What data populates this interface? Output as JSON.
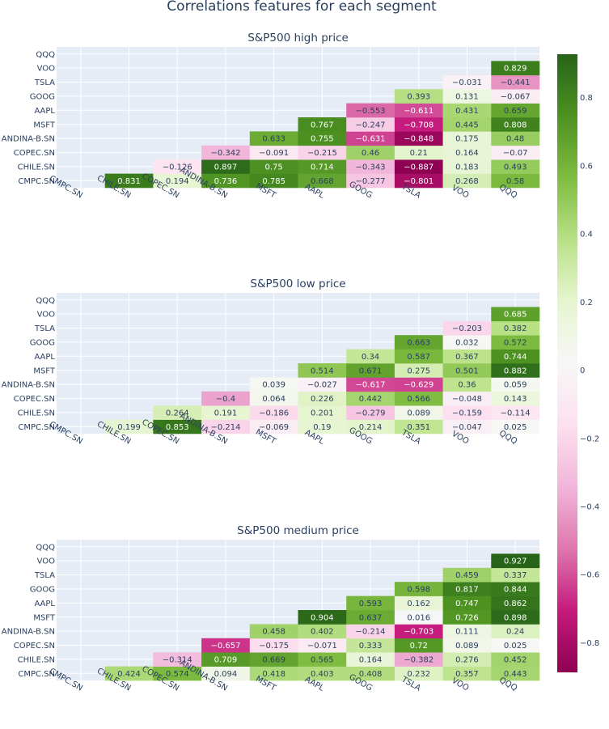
{
  "title": "Correlations features for each segment",
  "colors": {
    "plot_bg": "#e5ecf6",
    "grid": "#ffffff",
    "text": "#2a3f5f",
    "scale": [
      "#8e0152",
      "#c51b7d",
      "#de77ae",
      "#f1b6da",
      "#fde0ef",
      "#f7f7f7",
      "#e6f5d0",
      "#b8e186",
      "#7fbc41",
      "#4d9221",
      "#276419"
    ]
  },
  "colorbar": {
    "zmin": -0.887,
    "zmax": 0.927,
    "ticks": [
      "0.8",
      "0.6",
      "0.4",
      "0.2",
      "0",
      "−0.2",
      "−0.4",
      "−0.6",
      "−0.8"
    ],
    "tick_values": [
      0.8,
      0.6,
      0.4,
      0.2,
      0,
      -0.2,
      -0.4,
      -0.6,
      -0.8
    ]
  },
  "chart_data": [
    {
      "type": "heatmap",
      "title": "S&P500 high price",
      "x": [
        "CMPC.SN",
        "CHILE.SN",
        "COPEC.SN",
        "ANDINA-B.SN",
        "MSFT",
        "AAPL",
        "GOOG",
        "TSLA",
        "VOO",
        "QQQ"
      ],
      "y": [
        "CMPC.SN",
        "CHILE.SN",
        "COPEC.SN",
        "ANDINA-B.SN",
        "MSFT",
        "AAPL",
        "GOOG",
        "TSLA",
        "VOO",
        "QQQ"
      ],
      "z": [
        [
          null,
          "0.831",
          "0.194",
          "0.736",
          "0.785",
          "0.668",
          "−0.277",
          "−0.801",
          "0.268",
          "0.58"
        ],
        [
          null,
          null,
          "−0.126",
          "0.897",
          "0.75",
          "0.714",
          "−0.343",
          "−0.887",
          "0.183",
          "0.493"
        ],
        [
          null,
          null,
          null,
          "−0.342",
          "−0.091",
          "−0.215",
          "0.46",
          "0.21",
          "0.164",
          "−0.07"
        ],
        [
          null,
          null,
          null,
          null,
          "0.633",
          "0.755",
          "−0.631",
          "−0.848",
          "0.175",
          "0.48"
        ],
        [
          null,
          null,
          null,
          null,
          null,
          "0.767",
          "−0.247",
          "−0.708",
          "0.445",
          "0.808"
        ],
        [
          null,
          null,
          null,
          null,
          null,
          null,
          "−0.553",
          "−0.611",
          "0.431",
          "0.659"
        ],
        [
          null,
          null,
          null,
          null,
          null,
          null,
          null,
          "0.393",
          "0.131",
          "−0.067"
        ],
        [
          null,
          null,
          null,
          null,
          null,
          null,
          null,
          null,
          "−0.031",
          "−0.441"
        ],
        [
          null,
          null,
          null,
          null,
          null,
          null,
          null,
          null,
          null,
          "0.829"
        ],
        [
          null,
          null,
          null,
          null,
          null,
          null,
          null,
          null,
          null,
          null
        ]
      ]
    },
    {
      "type": "heatmap",
      "title": "S&P500 low price",
      "x": [
        "CMPC.SN",
        "CHILE.SN",
        "COPEC.SN",
        "ANDINA-B.SN",
        "MSFT",
        "AAPL",
        "GOOG",
        "TSLA",
        "VOO",
        "QQQ"
      ],
      "y": [
        "CMPC.SN",
        "CHILE.SN",
        "COPEC.SN",
        "ANDINA-B.SN",
        "MSFT",
        "AAPL",
        "GOOG",
        "TSLA",
        "VOO",
        "QQQ"
      ],
      "z": [
        [
          null,
          "0.199",
          "0.853",
          "−0.214",
          "−0.069",
          "0.19",
          "0.214",
          "0.351",
          "−0.047",
          "0.025"
        ],
        [
          null,
          null,
          "0.264",
          "0.191",
          "−0.186",
          "0.201",
          "−0.279",
          "0.089",
          "−0.159",
          "−0.114"
        ],
        [
          null,
          null,
          null,
          "−0.4",
          "0.064",
          "0.226",
          "0.442",
          "0.566",
          "−0.048",
          "0.143"
        ],
        [
          null,
          null,
          null,
          null,
          "0.039",
          "−0.027",
          "−0.617",
          "−0.629",
          "0.36",
          "0.059"
        ],
        [
          null,
          null,
          null,
          null,
          null,
          "0.514",
          "0.671",
          "0.275",
          "0.501",
          "0.882"
        ],
        [
          null,
          null,
          null,
          null,
          null,
          null,
          "0.34",
          "0.587",
          "0.367",
          "0.744"
        ],
        [
          null,
          null,
          null,
          null,
          null,
          null,
          null,
          "0.663",
          "0.032",
          "0.572"
        ],
        [
          null,
          null,
          null,
          null,
          null,
          null,
          null,
          null,
          "−0.203",
          "0.382"
        ],
        [
          null,
          null,
          null,
          null,
          null,
          null,
          null,
          null,
          null,
          "0.685"
        ],
        [
          null,
          null,
          null,
          null,
          null,
          null,
          null,
          null,
          null,
          null
        ]
      ]
    },
    {
      "type": "heatmap",
      "title": "S&P500 medium price",
      "x": [
        "CMPC.SN",
        "CHILE.SN",
        "COPEC.SN",
        "ANDINA-B.SN",
        "MSFT",
        "AAPL",
        "GOOG",
        "TSLA",
        "VOO",
        "QQQ"
      ],
      "y": [
        "CMPC.SN",
        "CHILE.SN",
        "COPEC.SN",
        "ANDINA-B.SN",
        "MSFT",
        "AAPL",
        "GOOG",
        "TSLA",
        "VOO",
        "QQQ"
      ],
      "z": [
        [
          null,
          "0.424",
          "0.574",
          "0.094",
          "0.418",
          "0.403",
          "0.408",
          "0.232",
          "0.357",
          "0.443"
        ],
        [
          null,
          null,
          "−0.314",
          "0.709",
          "0.669",
          "0.565",
          "0.164",
          "−0.382",
          "0.276",
          "0.452"
        ],
        [
          null,
          null,
          null,
          "−0.657",
          "−0.175",
          "−0.071",
          "0.333",
          "0.72",
          "0.089",
          "0.025"
        ],
        [
          null,
          null,
          null,
          null,
          "0.458",
          "0.402",
          "−0.214",
          "−0.703",
          "0.111",
          "0.24"
        ],
        [
          null,
          null,
          null,
          null,
          null,
          "0.904",
          "0.637",
          "0.016",
          "0.726",
          "0.898"
        ],
        [
          null,
          null,
          null,
          null,
          null,
          null,
          "0.593",
          "0.162",
          "0.747",
          "0.862"
        ],
        [
          null,
          null,
          null,
          null,
          null,
          null,
          null,
          "0.598",
          "0.817",
          "0.844"
        ],
        [
          null,
          null,
          null,
          null,
          null,
          null,
          null,
          null,
          "0.459",
          "0.337"
        ],
        [
          null,
          null,
          null,
          null,
          null,
          null,
          null,
          null,
          null,
          "0.927"
        ],
        [
          null,
          null,
          null,
          null,
          null,
          null,
          null,
          null,
          null,
          null
        ]
      ]
    }
  ]
}
